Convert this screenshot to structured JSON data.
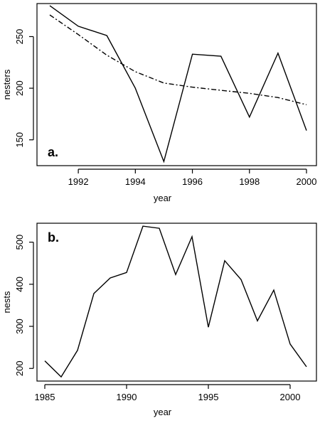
{
  "chart_data": [
    {
      "type": "line",
      "panel_label": "a.",
      "xlabel": "year",
      "ylabel": "nesters",
      "xlim": [
        1991,
        2000
      ],
      "ylim": [
        125,
        282
      ],
      "xticks": [
        1992,
        1994,
        1996,
        1998,
        2000
      ],
      "yticks": [
        150,
        200,
        250
      ],
      "series": [
        {
          "style": "solid",
          "x": [
            1991,
            1992,
            1993,
            1994,
            1995,
            1996,
            1997,
            1998,
            1999,
            2000
          ],
          "y": [
            280,
            260,
            251,
            200,
            129,
            233,
            231,
            172,
            234,
            159
          ]
        },
        {
          "style": "dash-dot",
          "x": [
            1991,
            1992,
            1993,
            1994,
            1995,
            1996,
            1997,
            1998,
            1999,
            2000
          ],
          "y": [
            271,
            252,
            232,
            216,
            205,
            201,
            198,
            195,
            191,
            184
          ]
        }
      ]
    },
    {
      "type": "line",
      "panel_label": "b.",
      "xlabel": "year",
      "ylabel": "nests",
      "xlim": [
        1985,
        2001
      ],
      "ylim": [
        170,
        545
      ],
      "xticks": [
        1985,
        1990,
        1995,
        2000
      ],
      "yticks": [
        200,
        300,
        400,
        500
      ],
      "series": [
        {
          "style": "solid",
          "x": [
            1985,
            1986,
            1987,
            1988,
            1989,
            1990,
            1991,
            1992,
            1993,
            1994,
            1995,
            1996,
            1997,
            1998,
            1999,
            2000,
            2001
          ],
          "y": [
            218,
            180,
            243,
            378,
            415,
            428,
            538,
            533,
            423,
            513,
            298,
            456,
            411,
            313,
            386,
            258,
            204
          ]
        }
      ]
    }
  ]
}
